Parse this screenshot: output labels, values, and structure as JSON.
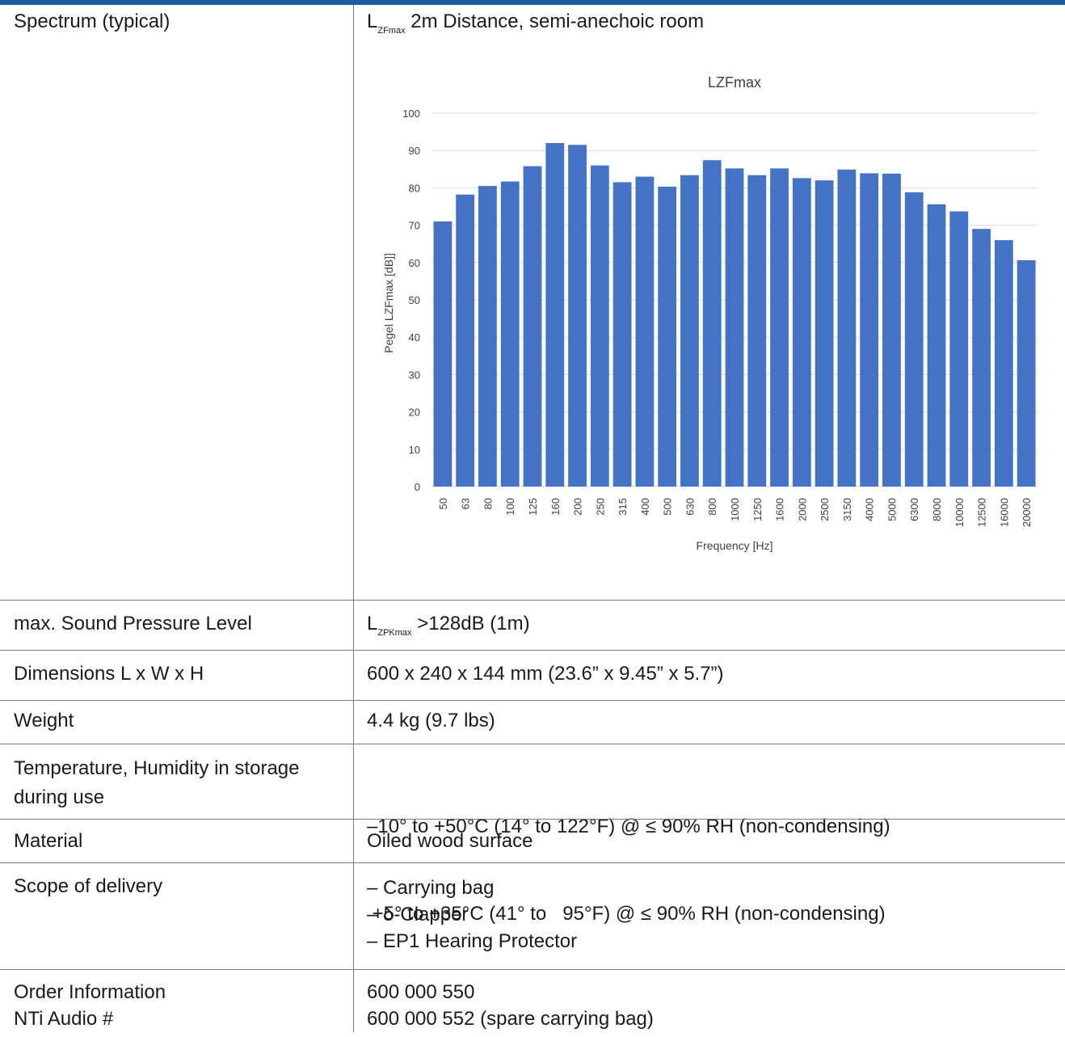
{
  "spectrum": {
    "label": "Spectrum (typical)",
    "heading_main": "L",
    "heading_sub": "ZFmax",
    "heading_rest": " 2m Distance, semi-anechoic room"
  },
  "chart_data": {
    "type": "bar",
    "title": "LZFmax",
    "xlabel": "Frequency [Hz]",
    "ylabel": "Pegel LZFmax [dB]]",
    "ylim": [
      0,
      100
    ],
    "yticks": [
      0,
      10,
      20,
      30,
      40,
      50,
      60,
      70,
      80,
      90,
      100
    ],
    "grid": true,
    "bar_color": "#4472c4",
    "categories": [
      "50",
      "63",
      "80",
      "100",
      "125",
      "160",
      "200",
      "250",
      "315",
      "400",
      "500",
      "630",
      "800",
      "1000",
      "1250",
      "1600",
      "2000",
      "2500",
      "3150",
      "4000",
      "5000",
      "6300",
      "8000",
      "10000",
      "12500",
      "16000",
      "20000"
    ],
    "values": [
      71,
      78.2,
      80.5,
      81.7,
      85.8,
      92,
      91.5,
      86,
      81.5,
      83,
      80.3,
      83.4,
      87.4,
      85.2,
      83.4,
      85.2,
      82.6,
      82,
      84.9,
      83.9,
      83.8,
      78.8,
      75.6,
      73.7,
      69,
      66,
      60.6
    ]
  },
  "rows": [
    {
      "label": "max. Sound Pressure Level",
      "v_main": "L",
      "v_sub": "ZPKmax",
      "v_rest": " >128dB (1m)"
    },
    {
      "label": "Dimensions L x W x H",
      "value": "600 x 240 x 144 mm (23.6” x 9.45” x 5.7”)"
    },
    {
      "label": "Weight",
      "value": "4.4 kg (9.7 lbs)"
    },
    {
      "label1": "Temperature, Humidity in storage",
      "label2": "during use",
      "value1": "–10° to +50°C (14° to 122°F) @ ≤ 90% RH (non-condensing)",
      "value2": " +5° to +35°C (41° to   95°F) @ ≤ 90% RH (non-condensing)"
    },
    {
      "label": "Material",
      "value": "Oiled wood surface"
    },
    {
      "label": "Scope of delivery",
      "items": [
        "– Carrying bag",
        "– δ-Clapper",
        "– EP1 Hearing Protector"
      ]
    },
    {
      "label1": "Order Information",
      "label2": "NTi Audio #",
      "value1": "600 000 550",
      "value2": "600 000 552 (spare carrying bag)"
    }
  ]
}
